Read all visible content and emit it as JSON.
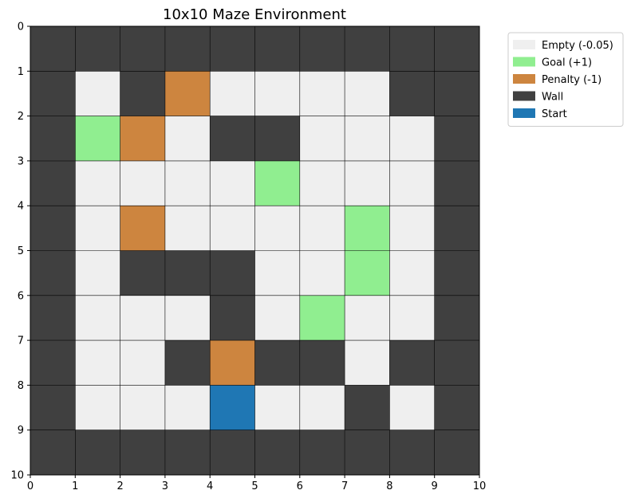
{
  "chart_data": {
    "type": "heatmap",
    "title": "10x10 Maze Environment",
    "xlabel": "",
    "ylabel": "",
    "xlim": [
      0,
      10
    ],
    "ylim": [
      10,
      0
    ],
    "y_inverted": true,
    "xticks": [
      "0",
      "1",
      "2",
      "3",
      "4",
      "5",
      "6",
      "7",
      "8",
      "9",
      "10"
    ],
    "yticks": [
      "0",
      "1",
      "2",
      "3",
      "4",
      "5",
      "6",
      "7",
      "8",
      "9",
      "10"
    ],
    "grid": true,
    "legend_position": "outside-upper-right",
    "categories": [
      {
        "key": "E",
        "label": "Empty (-0.05)",
        "color": "#efefef"
      },
      {
        "key": "G",
        "label": "Goal (+1)",
        "color": "#90ee90"
      },
      {
        "key": "P",
        "label": "Penalty (-1)",
        "color": "#cd853f"
      },
      {
        "key": "W",
        "label": "Wall",
        "color": "#404040"
      },
      {
        "key": "S",
        "label": "Start",
        "color": "#1f77b4"
      }
    ],
    "grid_cells": [
      [
        "W",
        "W",
        "W",
        "W",
        "W",
        "W",
        "W",
        "W",
        "W",
        "W"
      ],
      [
        "W",
        "E",
        "W",
        "P",
        "E",
        "E",
        "E",
        "E",
        "W",
        "W"
      ],
      [
        "W",
        "G",
        "P",
        "E",
        "W",
        "W",
        "E",
        "E",
        "E",
        "W"
      ],
      [
        "W",
        "E",
        "E",
        "E",
        "E",
        "G",
        "E",
        "E",
        "E",
        "W"
      ],
      [
        "W",
        "E",
        "P",
        "E",
        "E",
        "E",
        "E",
        "G",
        "E",
        "W"
      ],
      [
        "W",
        "E",
        "W",
        "W",
        "W",
        "E",
        "E",
        "G",
        "E",
        "W"
      ],
      [
        "W",
        "E",
        "E",
        "E",
        "W",
        "E",
        "G",
        "E",
        "E",
        "W"
      ],
      [
        "W",
        "E",
        "E",
        "W",
        "P",
        "W",
        "W",
        "E",
        "W",
        "W"
      ],
      [
        "W",
        "E",
        "E",
        "E",
        "S",
        "E",
        "E",
        "W",
        "E",
        "W"
      ],
      [
        "W",
        "W",
        "W",
        "W",
        "W",
        "W",
        "W",
        "W",
        "W",
        "W"
      ]
    ]
  }
}
